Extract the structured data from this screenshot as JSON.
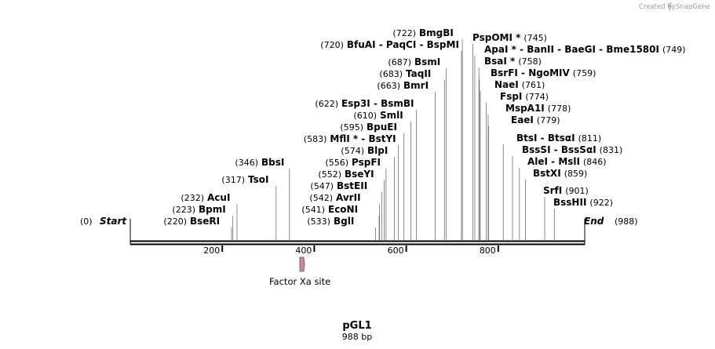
{
  "credit": "Created by",
  "brand": "SnapGene",
  "plasmid": {
    "name": "pGL1",
    "length_label": "988 bp",
    "length": 988
  },
  "ends": [
    {
      "pos": 0,
      "pos_text": "(0)",
      "name": "Start"
    },
    {
      "pos": 988,
      "pos_text": "(988)",
      "name": "End"
    }
  ],
  "ruler": [
    200,
    400,
    600,
    800
  ],
  "feature": {
    "name": "Factor Xa site",
    "color": "#c98aa7"
  },
  "sites": [
    {
      "pos": 220,
      "pos_text": "(220)",
      "name": "BseRI"
    },
    {
      "pos": 223,
      "pos_text": "(223)",
      "name": "BpmI"
    },
    {
      "pos": 232,
      "pos_text": "(232)",
      "name": "AcuI"
    },
    {
      "pos": 317,
      "pos_text": "(317)",
      "name": "TsoI"
    },
    {
      "pos": 346,
      "pos_text": "(346)",
      "name": "BbsI"
    },
    {
      "pos": 533,
      "pos_text": "(533)",
      "name": "BglI"
    },
    {
      "pos": 541,
      "pos_text": "(541)",
      "name": "EcoNI"
    },
    {
      "pos": 542,
      "pos_text": "(542)",
      "name": "AvrII"
    },
    {
      "pos": 547,
      "pos_text": "(547)",
      "name": "BstEII"
    },
    {
      "pos": 552,
      "pos_text": "(552)",
      "name": "BseYI"
    },
    {
      "pos": 556,
      "pos_text": "(556)",
      "name": "PspFI"
    },
    {
      "pos": 574,
      "pos_text": "(574)",
      "name": "BlpI"
    },
    {
      "pos": 583,
      "pos_text": "(583)",
      "name": "MflI * - BstYI"
    },
    {
      "pos": 595,
      "pos_text": "(595)",
      "name": "BpuEI"
    },
    {
      "pos": 610,
      "pos_text": "(610)",
      "name": "SmlI"
    },
    {
      "pos": 622,
      "pos_text": "(622)",
      "name": "Esp3I  - BsmBI"
    },
    {
      "pos": 663,
      "pos_text": "(663)",
      "name": "BmrI"
    },
    {
      "pos": 683,
      "pos_text": "(683)",
      "name": "TaqII"
    },
    {
      "pos": 687,
      "pos_text": "(687)",
      "name": "BsmI"
    },
    {
      "pos": 720,
      "pos_text": "(720)",
      "name": "BfuAI  - PaqCI  - BspMI"
    },
    {
      "pos": 722,
      "pos_text": "(722)",
      "name": "BmgBI"
    },
    {
      "pos": 745,
      "pos_text": "(745)",
      "name": "PspOMI *"
    },
    {
      "pos": 749,
      "pos_text": "(749)",
      "name": "ApaI *  - BanII  - BaeGI  - Bme1580I"
    },
    {
      "pos": 758,
      "pos_text": "(758)",
      "name": "BsaI *"
    },
    {
      "pos": 759,
      "pos_text": "(759)",
      "name": "BsrFI  - NgoMIV"
    },
    {
      "pos": 761,
      "pos_text": "(761)",
      "name": "NaeI"
    },
    {
      "pos": 774,
      "pos_text": "(774)",
      "name": "FspI"
    },
    {
      "pos": 778,
      "pos_text": "(778)",
      "name": "MspA1I"
    },
    {
      "pos": 779,
      "pos_text": "(779)",
      "name": "EaeI"
    },
    {
      "pos": 811,
      "pos_text": "(811)",
      "name": "BtsI  - BtsαI"
    },
    {
      "pos": 831,
      "pos_text": "(831)",
      "name": "BssSI  - BssSαI"
    },
    {
      "pos": 846,
      "pos_text": "(846)",
      "name": "AleI  - MslI"
    },
    {
      "pos": 859,
      "pos_text": "(859)",
      "name": "BstXI"
    },
    {
      "pos": 901,
      "pos_text": "(901)",
      "name": "SrfI"
    },
    {
      "pos": 922,
      "pos_text": "(922)",
      "name": "BssHII"
    }
  ]
}
